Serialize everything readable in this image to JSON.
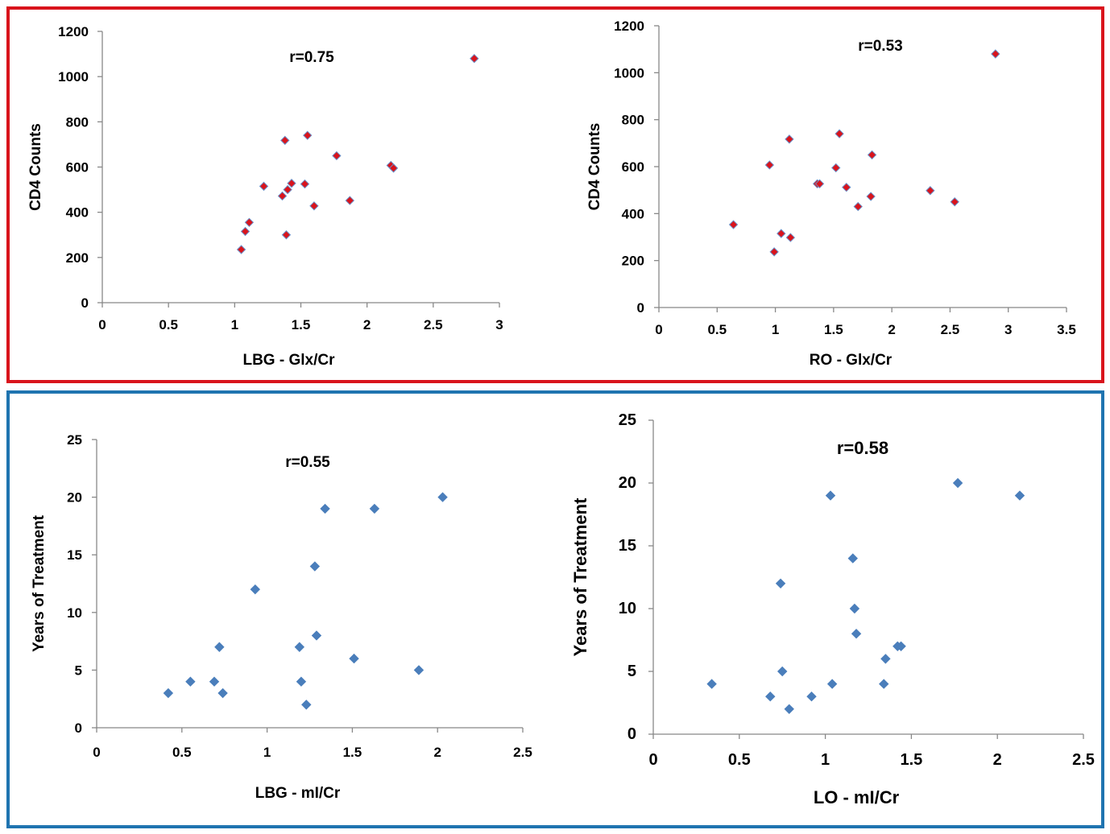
{
  "panels": {
    "top": {
      "border_color": "#d9141c"
    },
    "bottom": {
      "border_color": "#1f74b0"
    }
  },
  "chart_data": [
    {
      "type": "scatter",
      "title": "",
      "annotation": "r=0.75",
      "xlabel": "LBG - Glx/Cr",
      "ylabel": "CD4 Counts",
      "xlim": [
        0,
        3
      ],
      "ylim": [
        0,
        1200
      ],
      "xticks": [
        "0",
        "0.5",
        "1",
        "1.5",
        "2",
        "2.5",
        "3"
      ],
      "yticks": [
        "0",
        "200",
        "400",
        "600",
        "800",
        "1000",
        "1200"
      ],
      "marker_color": "#d9141c",
      "marker_edge": "#6b8fc7",
      "points": [
        {
          "x": 1.05,
          "y": 235
        },
        {
          "x": 1.08,
          "y": 315
        },
        {
          "x": 1.11,
          "y": 355
        },
        {
          "x": 1.22,
          "y": 515
        },
        {
          "x": 1.36,
          "y": 472
        },
        {
          "x": 1.38,
          "y": 718
        },
        {
          "x": 1.39,
          "y": 300
        },
        {
          "x": 1.4,
          "y": 500
        },
        {
          "x": 1.43,
          "y": 528
        },
        {
          "x": 1.53,
          "y": 525
        },
        {
          "x": 1.55,
          "y": 740
        },
        {
          "x": 1.6,
          "y": 428
        },
        {
          "x": 1.77,
          "y": 650
        },
        {
          "x": 1.87,
          "y": 452
        },
        {
          "x": 2.18,
          "y": 607
        },
        {
          "x": 2.2,
          "y": 595
        },
        {
          "x": 2.81,
          "y": 1080
        }
      ]
    },
    {
      "type": "scatter",
      "title": "",
      "annotation": "r=0.53",
      "xlabel": "RO - Glx/Cr",
      "ylabel": "CD4 Counts",
      "xlim": [
        0,
        3.5
      ],
      "ylim": [
        0,
        1200
      ],
      "xticks": [
        "0",
        "0.5",
        "1",
        "1.5",
        "2",
        "2.5",
        "3",
        "3.5"
      ],
      "yticks": [
        "0",
        "200",
        "400",
        "600",
        "800",
        "1000",
        "1200"
      ],
      "marker_color": "#d9141c",
      "marker_edge": "#6b8fc7",
      "points": [
        {
          "x": 0.64,
          "y": 353
        },
        {
          "x": 0.95,
          "y": 607
        },
        {
          "x": 0.99,
          "y": 237
        },
        {
          "x": 1.05,
          "y": 315
        },
        {
          "x": 1.12,
          "y": 717
        },
        {
          "x": 1.13,
          "y": 298
        },
        {
          "x": 1.36,
          "y": 527
        },
        {
          "x": 1.38,
          "y": 527
        },
        {
          "x": 1.52,
          "y": 595
        },
        {
          "x": 1.55,
          "y": 740
        },
        {
          "x": 1.61,
          "y": 512
        },
        {
          "x": 1.71,
          "y": 430
        },
        {
          "x": 1.82,
          "y": 473
        },
        {
          "x": 1.83,
          "y": 650
        },
        {
          "x": 2.33,
          "y": 498
        },
        {
          "x": 2.54,
          "y": 450
        },
        {
          "x": 2.89,
          "y": 1080
        }
      ]
    },
    {
      "type": "scatter",
      "title": "",
      "annotation": "r=0.55",
      "xlabel": "LBG - mI/Cr",
      "ylabel": "Years of Treatment",
      "xlim": [
        0,
        2.5
      ],
      "ylim": [
        0,
        25
      ],
      "xticks": [
        "0",
        "0.5",
        "1",
        "1.5",
        "2",
        "2.5"
      ],
      "yticks": [
        "0",
        "5",
        "10",
        "15",
        "20",
        "25"
      ],
      "marker_color": "#4a7ebb",
      "marker_edge": "#4a7ebb",
      "points": [
        {
          "x": 0.42,
          "y": 3
        },
        {
          "x": 0.55,
          "y": 4
        },
        {
          "x": 0.69,
          "y": 4
        },
        {
          "x": 0.72,
          "y": 7
        },
        {
          "x": 0.74,
          "y": 3
        },
        {
          "x": 0.93,
          "y": 12
        },
        {
          "x": 1.19,
          "y": 7
        },
        {
          "x": 1.2,
          "y": 4
        },
        {
          "x": 1.23,
          "y": 2
        },
        {
          "x": 1.28,
          "y": 14
        },
        {
          "x": 1.29,
          "y": 8
        },
        {
          "x": 1.34,
          "y": 19
        },
        {
          "x": 1.51,
          "y": 6
        },
        {
          "x": 1.63,
          "y": 19
        },
        {
          "x": 1.89,
          "y": 5
        },
        {
          "x": 2.03,
          "y": 20
        }
      ]
    },
    {
      "type": "scatter",
      "title": "",
      "annotation": "r=0.58",
      "xlabel": "LO - mI/Cr",
      "ylabel": "Years of Treatment",
      "xlim": [
        0,
        2.5
      ],
      "ylim": [
        0,
        25
      ],
      "xticks": [
        "0",
        "0.5",
        "1",
        "1.5",
        "2",
        "2.5"
      ],
      "yticks": [
        "0",
        "5",
        "10",
        "15",
        "20",
        "25"
      ],
      "marker_color": "#4a7ebb",
      "marker_edge": "#4a7ebb",
      "points": [
        {
          "x": 0.34,
          "y": 4
        },
        {
          "x": 0.68,
          "y": 3
        },
        {
          "x": 0.74,
          "y": 12
        },
        {
          "x": 0.75,
          "y": 5
        },
        {
          "x": 0.79,
          "y": 2
        },
        {
          "x": 0.92,
          "y": 3
        },
        {
          "x": 1.03,
          "y": 19
        },
        {
          "x": 1.04,
          "y": 4
        },
        {
          "x": 1.16,
          "y": 14
        },
        {
          "x": 1.17,
          "y": 10
        },
        {
          "x": 1.18,
          "y": 8
        },
        {
          "x": 1.34,
          "y": 4
        },
        {
          "x": 1.35,
          "y": 6
        },
        {
          "x": 1.42,
          "y": 7
        },
        {
          "x": 1.44,
          "y": 7
        },
        {
          "x": 1.77,
          "y": 20
        },
        {
          "x": 2.13,
          "y": 19
        }
      ]
    }
  ]
}
